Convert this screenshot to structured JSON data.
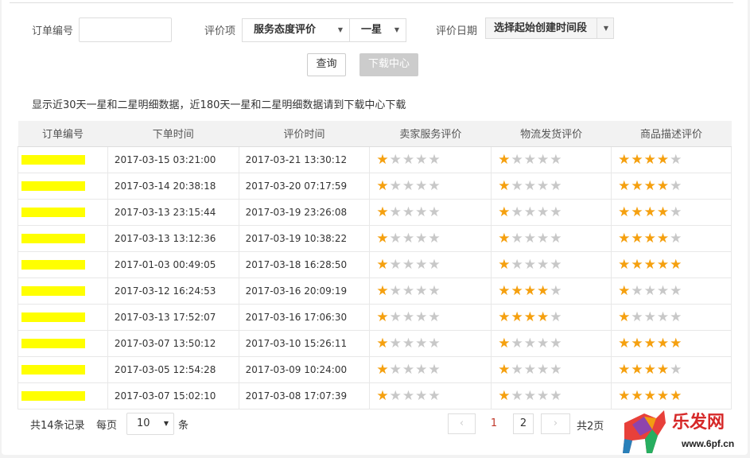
{
  "filters": {
    "order_label": "订单编号",
    "order_value": "",
    "item_label": "评价项",
    "item_value": "服务态度评价",
    "star_value": "一星",
    "date_label": "评价日期",
    "date_value": "选择起始创建时间段",
    "query_button": "查询",
    "download_button": "下载中心"
  },
  "note": "显示近30天一星和二星明细数据，近180天一星和二星明细数据请到下载中心下载",
  "table": {
    "headers": [
      "订单编号",
      "下单时间",
      "评价时间",
      "卖家服务评价",
      "物流发货评价",
      "商品描述评价"
    ],
    "rows": [
      {
        "order": "",
        "placed": "2017-03-15 03:21:00",
        "rated": "2017-03-21 13:30:12",
        "seller": 1,
        "logistics": 1,
        "product": 4
      },
      {
        "order": "",
        "placed": "2017-03-14 20:38:18",
        "rated": "2017-03-20 07:17:59",
        "seller": 1,
        "logistics": 1,
        "product": 4
      },
      {
        "order": "",
        "placed": "2017-03-13 23:15:44",
        "rated": "2017-03-19 23:26:08",
        "seller": 1,
        "logistics": 1,
        "product": 4
      },
      {
        "order": "",
        "placed": "2017-03-13 13:12:36",
        "rated": "2017-03-19 10:38:22",
        "seller": 1,
        "logistics": 1,
        "product": 4
      },
      {
        "order": "",
        "placed": "2017-01-03 00:49:05",
        "rated": "2017-03-18 16:28:50",
        "seller": 1,
        "logistics": 1,
        "product": 5
      },
      {
        "order": "",
        "placed": "2017-03-12 16:24:53",
        "rated": "2017-03-16 20:09:19",
        "seller": 1,
        "logistics": 4,
        "product": 1
      },
      {
        "order": "",
        "placed": "2017-03-13 17:52:07",
        "rated": "2017-03-16 17:06:30",
        "seller": 1,
        "logistics": 4,
        "product": 1
      },
      {
        "order": "",
        "placed": "2017-03-07 13:50:12",
        "rated": "2017-03-10 15:26:11",
        "seller": 1,
        "logistics": 1,
        "product": 5
      },
      {
        "order": "",
        "placed": "2017-03-05 12:54:28",
        "rated": "2017-03-09 10:24:00",
        "seller": 1,
        "logistics": 1,
        "product": 4
      },
      {
        "order": "",
        "placed": "2017-03-07 15:02:10",
        "rated": "2017-03-08 17:07:39",
        "seller": 1,
        "logistics": 1,
        "product": 5
      }
    ]
  },
  "pagination": {
    "total": "共14条记录",
    "per_page_label": "每页",
    "per_page": "10",
    "per_page_unit": "条",
    "pages": [
      "1",
      "2"
    ],
    "current": "1",
    "total_pages": "共2页"
  },
  "watermark": {
    "text": "乐发网",
    "url": "www.6pf.cn"
  },
  "colors": {
    "star_on": "#f5a00f",
    "star_off": "#c8c8c8",
    "highlight": "#ffff00",
    "current_page": "#c0392b"
  }
}
